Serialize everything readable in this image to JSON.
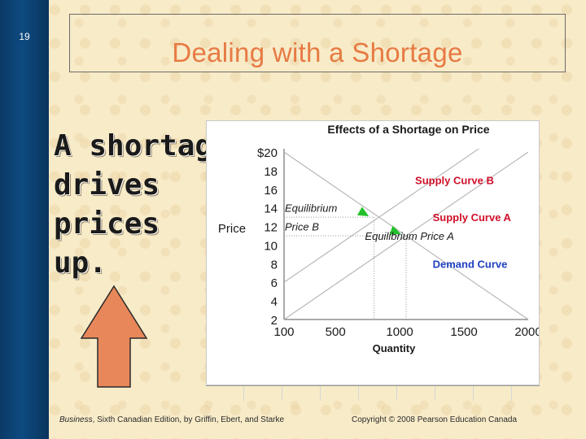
{
  "slide": {
    "number": "19",
    "title": "Dealing with a Shortage",
    "side_text_lines": [
      "A shortage",
      "drives",
      "prices",
      "up."
    ],
    "footer_left_book": "Business",
    "footer_left_rest": ", Sixth Canadian Edition, by Griffin, Ebert, and Starke",
    "footer_right": "Copyright © 2008 Pearson Education Canada",
    "arrow_color": "#e8875a",
    "accent_color": "#e77a44"
  },
  "chart_data": {
    "type": "line",
    "title": "Effects of a Shortage on Price",
    "xlabel": "Quantity",
    "ylabel": "Price",
    "x_ticks": [
      "100",
      "500",
      "1000",
      "1500",
      "2000"
    ],
    "y_ticks": [
      "$20",
      "18",
      "16",
      "14",
      "12",
      "10",
      "8",
      "6",
      "4",
      "2"
    ],
    "xlim": [
      100,
      2000
    ],
    "ylim": [
      2,
      20
    ],
    "series": [
      {
        "name": "Demand Curve",
        "color": "#1f3fbf",
        "points": [
          [
            100,
            20
          ],
          [
            2000,
            2
          ]
        ]
      },
      {
        "name": "Supply Curve A",
        "color": "#d0102a",
        "points": [
          [
            100,
            2
          ],
          [
            2000,
            20
          ]
        ]
      },
      {
        "name": "Supply Curve B",
        "color": "#d0102a",
        "points": [
          [
            100,
            6
          ],
          [
            2000,
            24
          ]
        ]
      }
    ],
    "annotations": [
      {
        "text": "Equilibrium",
        "x": 100,
        "y": 14
      },
      {
        "text": "Price B",
        "x": 100,
        "y": 12
      },
      {
        "text": "Equilibrium Price A",
        "x": 1000,
        "y": 11
      },
      {
        "text": "Supply Curve B",
        "x": 1500,
        "y": 17
      },
      {
        "text": "Supply Curve A",
        "x": 1700,
        "y": 13
      },
      {
        "text": "Demand Curve",
        "x": 1700,
        "y": 8
      }
    ],
    "label_colors": {
      "Supply Curve B": "#d0102a",
      "Supply Curve A": "#d0102a",
      "Demand Curve": "#1f3fbf"
    },
    "equilibrium_points": [
      {
        "name": "Equilibrium B",
        "x": 800,
        "y": 13
      },
      {
        "name": "Equilibrium A",
        "x": 1050,
        "y": 11
      }
    ],
    "grid": false
  }
}
